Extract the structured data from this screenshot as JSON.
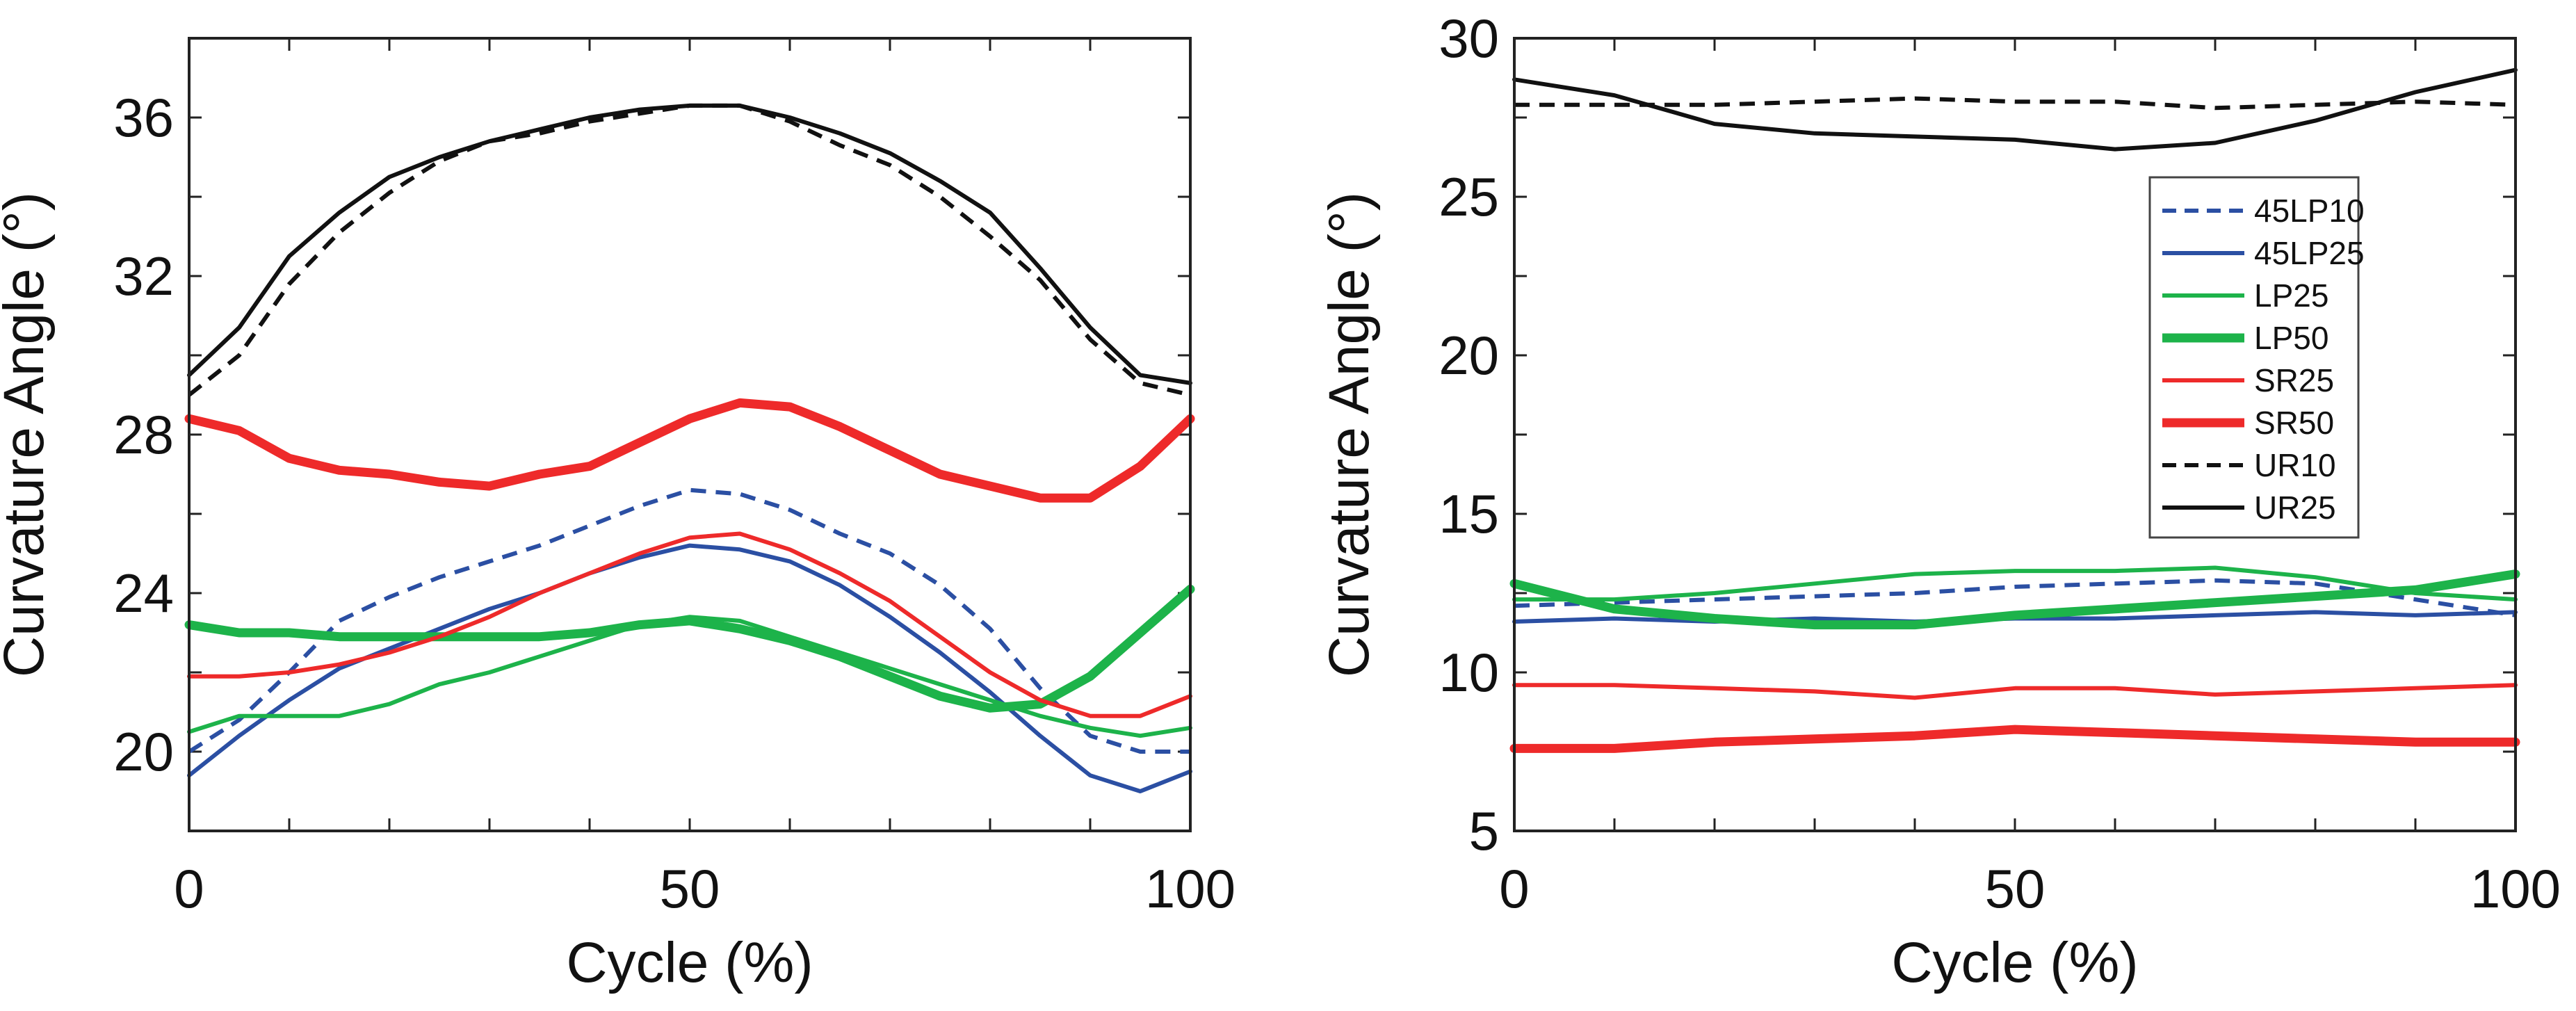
{
  "chart_data": [
    {
      "type": "line",
      "title": "",
      "xlabel": "Cycle (%)",
      "ylabel": "Curvature Angle (°)",
      "xlim": [
        0,
        100
      ],
      "ylim": [
        18,
        38
      ],
      "xticks": [
        0,
        50,
        100
      ],
      "yticks": [
        20,
        24,
        28,
        32,
        36
      ],
      "grid": false,
      "series": [
        {
          "name": "45LP10",
          "color": "#2b4fa3",
          "style": "dashed",
          "width": "thin",
          "x": [
            0,
            5,
            10,
            15,
            20,
            25,
            30,
            35,
            40,
            45,
            50,
            55,
            60,
            65,
            70,
            75,
            80,
            85,
            90,
            95,
            100
          ],
          "y": [
            20.0,
            20.8,
            22.0,
            23.3,
            23.9,
            24.4,
            24.8,
            25.2,
            25.7,
            26.2,
            26.6,
            26.5,
            26.1,
            25.5,
            25.0,
            24.2,
            23.1,
            21.6,
            20.4,
            20.0,
            20.0
          ]
        },
        {
          "name": "45LP25",
          "color": "#2b4fa3",
          "style": "solid",
          "width": "thin",
          "x": [
            0,
            5,
            10,
            15,
            20,
            25,
            30,
            35,
            40,
            45,
            50,
            55,
            60,
            65,
            70,
            75,
            80,
            85,
            90,
            95,
            100
          ],
          "y": [
            19.4,
            20.4,
            21.3,
            22.1,
            22.6,
            23.1,
            23.6,
            24.0,
            24.5,
            24.9,
            25.2,
            25.1,
            24.8,
            24.2,
            23.4,
            22.5,
            21.5,
            20.4,
            19.4,
            19.0,
            19.5
          ]
        },
        {
          "name": "LP25",
          "color": "#1db34a",
          "style": "solid",
          "width": "thin",
          "x": [
            0,
            5,
            10,
            15,
            20,
            25,
            30,
            35,
            40,
            45,
            50,
            55,
            60,
            65,
            70,
            75,
            80,
            85,
            90,
            95,
            100
          ],
          "y": [
            20.5,
            20.9,
            20.9,
            20.9,
            21.2,
            21.7,
            22.0,
            22.4,
            22.8,
            23.2,
            23.4,
            23.3,
            22.9,
            22.5,
            22.1,
            21.7,
            21.3,
            20.9,
            20.6,
            20.4,
            20.6
          ]
        },
        {
          "name": "LP50",
          "color": "#1db34a",
          "style": "solid",
          "width": "thick",
          "x": [
            0,
            5,
            10,
            15,
            20,
            25,
            30,
            35,
            40,
            45,
            50,
            55,
            60,
            65,
            70,
            75,
            80,
            85,
            90,
            95,
            100
          ],
          "y": [
            23.2,
            23.0,
            23.0,
            22.9,
            22.9,
            22.9,
            22.9,
            22.9,
            23.0,
            23.2,
            23.3,
            23.1,
            22.8,
            22.4,
            21.9,
            21.4,
            21.1,
            21.2,
            21.9,
            23.0,
            24.1
          ]
        },
        {
          "name": "SR25",
          "color": "#ee2a2a",
          "style": "solid",
          "width": "thin",
          "x": [
            0,
            5,
            10,
            15,
            20,
            25,
            30,
            35,
            40,
            45,
            50,
            55,
            60,
            65,
            70,
            75,
            80,
            85,
            90,
            95,
            100
          ],
          "y": [
            21.9,
            21.9,
            22.0,
            22.2,
            22.5,
            22.9,
            23.4,
            24.0,
            24.5,
            25.0,
            25.4,
            25.5,
            25.1,
            24.5,
            23.8,
            22.9,
            22.0,
            21.3,
            20.9,
            20.9,
            21.4
          ]
        },
        {
          "name": "SR50",
          "color": "#ee2a2a",
          "style": "solid",
          "width": "thick",
          "x": [
            0,
            5,
            10,
            15,
            20,
            25,
            30,
            35,
            40,
            45,
            50,
            55,
            60,
            65,
            70,
            75,
            80,
            85,
            90,
            95,
            100
          ],
          "y": [
            28.4,
            28.1,
            27.4,
            27.1,
            27.0,
            26.8,
            26.7,
            27.0,
            27.2,
            27.8,
            28.4,
            28.8,
            28.7,
            28.2,
            27.6,
            27.0,
            26.7,
            26.4,
            26.4,
            27.2,
            28.4
          ]
        },
        {
          "name": "UR10",
          "color": "#111111",
          "style": "dashed",
          "width": "thin",
          "x": [
            0,
            5,
            10,
            15,
            20,
            25,
            30,
            35,
            40,
            45,
            50,
            55,
            60,
            65,
            70,
            75,
            80,
            85,
            90,
            95,
            100
          ],
          "y": [
            29.0,
            30.0,
            31.8,
            33.1,
            34.1,
            34.9,
            35.4,
            35.6,
            35.9,
            36.1,
            36.3,
            36.3,
            35.9,
            35.3,
            34.8,
            34.0,
            33.0,
            31.9,
            30.4,
            29.3,
            29.0
          ]
        },
        {
          "name": "UR25",
          "color": "#111111",
          "style": "solid",
          "width": "thin",
          "x": [
            0,
            5,
            10,
            15,
            20,
            25,
            30,
            35,
            40,
            45,
            50,
            55,
            60,
            65,
            70,
            75,
            80,
            85,
            90,
            95,
            100
          ],
          "y": [
            29.5,
            30.7,
            32.5,
            33.6,
            34.5,
            35.0,
            35.4,
            35.7,
            36.0,
            36.2,
            36.3,
            36.3,
            36.0,
            35.6,
            35.1,
            34.4,
            33.6,
            32.2,
            30.7,
            29.5,
            29.3
          ]
        }
      ]
    },
    {
      "type": "line",
      "title": "",
      "xlabel": "Cycle (%)",
      "ylabel": "Curvature Angle (°)",
      "xlim": [
        0,
        100
      ],
      "ylim": [
        5,
        30
      ],
      "xticks": [
        0,
        50,
        100
      ],
      "yticks": [
        5,
        10,
        15,
        20,
        25,
        30
      ],
      "grid": false,
      "legend": "center-right",
      "series": [
        {
          "name": "45LP10",
          "color": "#2b4fa3",
          "style": "dashed",
          "width": "thin",
          "x": [
            0,
            10,
            20,
            30,
            40,
            50,
            60,
            70,
            80,
            90,
            100
          ],
          "y": [
            12.1,
            12.2,
            12.3,
            12.4,
            12.5,
            12.7,
            12.8,
            12.9,
            12.8,
            12.3,
            11.8
          ]
        },
        {
          "name": "45LP25",
          "color": "#2b4fa3",
          "style": "solid",
          "width": "thin",
          "x": [
            0,
            10,
            20,
            30,
            40,
            50,
            60,
            70,
            80,
            90,
            100
          ],
          "y": [
            11.6,
            11.7,
            11.6,
            11.7,
            11.6,
            11.7,
            11.7,
            11.8,
            11.9,
            11.8,
            11.9
          ]
        },
        {
          "name": "LP25",
          "color": "#1db34a",
          "style": "solid",
          "width": "thin",
          "x": [
            0,
            10,
            20,
            30,
            40,
            50,
            60,
            70,
            80,
            90,
            100
          ],
          "y": [
            12.3,
            12.3,
            12.5,
            12.8,
            13.1,
            13.2,
            13.2,
            13.3,
            13.0,
            12.5,
            12.3
          ]
        },
        {
          "name": "LP50",
          "color": "#1db34a",
          "style": "solid",
          "width": "thick",
          "x": [
            0,
            10,
            20,
            30,
            40,
            50,
            60,
            70,
            80,
            90,
            100
          ],
          "y": [
            12.8,
            12.0,
            11.7,
            11.5,
            11.5,
            11.8,
            12.0,
            12.2,
            12.4,
            12.6,
            13.1
          ]
        },
        {
          "name": "SR25",
          "color": "#ee2a2a",
          "style": "solid",
          "width": "thin",
          "x": [
            0,
            10,
            20,
            30,
            40,
            50,
            60,
            70,
            80,
            90,
            100
          ],
          "y": [
            9.6,
            9.6,
            9.5,
            9.4,
            9.2,
            9.5,
            9.5,
            9.3,
            9.4,
            9.5,
            9.6
          ]
        },
        {
          "name": "SR50",
          "color": "#ee2a2a",
          "style": "solid",
          "width": "thick",
          "x": [
            0,
            10,
            20,
            30,
            40,
            50,
            60,
            70,
            80,
            90,
            100
          ],
          "y": [
            7.6,
            7.6,
            7.8,
            7.9,
            8.0,
            8.2,
            8.1,
            8.0,
            7.9,
            7.8,
            7.8
          ]
        },
        {
          "name": "UR10",
          "color": "#111111",
          "style": "dashed",
          "width": "thin",
          "x": [
            0,
            10,
            20,
            30,
            40,
            50,
            60,
            70,
            80,
            90,
            100
          ],
          "y": [
            27.9,
            27.9,
            27.9,
            28.0,
            28.1,
            28.0,
            28.0,
            27.8,
            27.9,
            28.0,
            27.9
          ]
        },
        {
          "name": "UR25",
          "color": "#111111",
          "style": "solid",
          "width": "thin",
          "x": [
            0,
            10,
            20,
            30,
            40,
            50,
            60,
            70,
            80,
            90,
            100
          ],
          "y": [
            28.7,
            28.2,
            27.3,
            27.0,
            26.9,
            26.8,
            26.5,
            26.7,
            27.4,
            28.3,
            29.0
          ]
        }
      ]
    }
  ]
}
